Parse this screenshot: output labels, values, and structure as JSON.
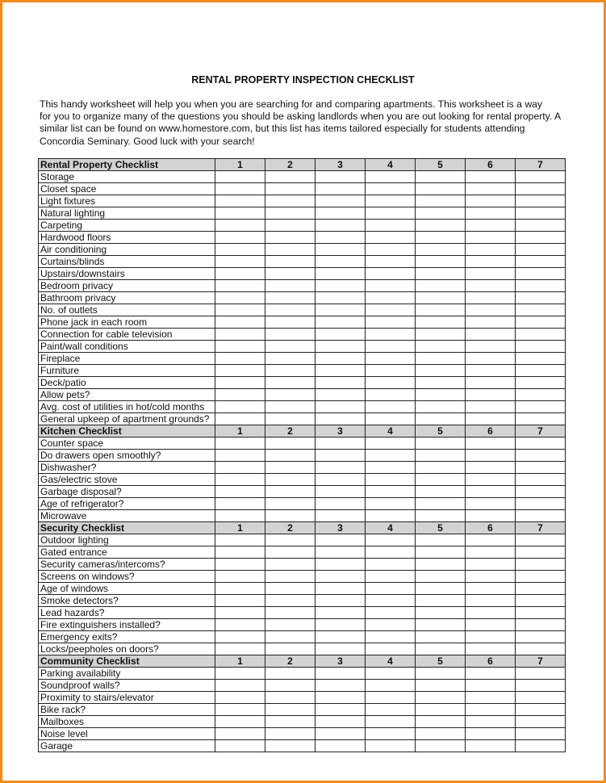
{
  "colors": {
    "border": "#f28a1e",
    "header_bg": "#d3d3d3"
  },
  "title": "RENTAL PROPERTY INSPECTION CHECKLIST",
  "intro_lines": [
    "This handy worksheet will help you when you are searching for and comparing apartments.  This worksheet is a way",
    "for you to organize many of the questions you should be asking landlords when you are out looking for rental property. A",
    "similar list can be found on www.homestore.com, but this list has items tailored especially for students attending",
    "Concordia Seminary. Good luck with your search!"
  ],
  "columns": [
    "1",
    "2",
    "3",
    "4",
    "5",
    "6",
    "7"
  ],
  "sections": [
    {
      "title": "Rental Property Checklist",
      "items": [
        "Storage",
        "Closet space",
        "Light fixtures",
        "Natural lighting",
        "Carpeting",
        "Hardwood floors",
        "Air conditioning",
        "Curtains/blinds",
        "Upstairs/downstairs",
        "Bedroom privacy",
        "Bathroom privacy",
        "No. of outlets",
        "Phone jack in each room",
        "Connection for cable television",
        "Paint/wall conditions",
        "Fireplace",
        "Furniture",
        "Deck/patio",
        "Allow pets?",
        "Avg. cost of utilities in hot/cold months",
        "General upkeep of apartment grounds?"
      ]
    },
    {
      "title": "Kitchen Checklist",
      "items": [
        "Counter space",
        "Do drawers open smoothly?",
        "Dishwasher?",
        "Gas/electric stove",
        "Garbage disposal?",
        "Age of refrigerator?",
        "Microwave"
      ]
    },
    {
      "title": "Security Checklist",
      "items": [
        "Outdoor lighting",
        "Gated entrance",
        "Security cameras/intercoms?",
        "Screens on windows?",
        "Age of windows",
        "Smoke detectors?",
        "Lead hazards?",
        "Fire extinguishers installed?",
        "Emergency exits?",
        "Locks/peepholes on doors?"
      ]
    },
    {
      "title": "Community Checklist",
      "items": [
        "Parking availability",
        "Soundproof walls?",
        "Proximity to stairs/elevator",
        "Bike rack?",
        "Mailboxes",
        "Noise level",
        "Garage"
      ]
    }
  ]
}
